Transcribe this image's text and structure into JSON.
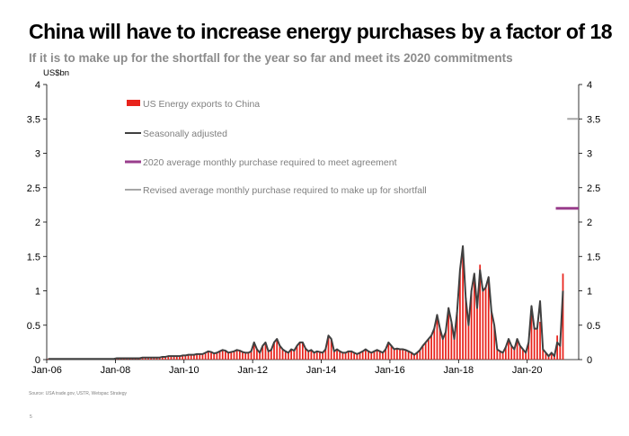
{
  "header": {
    "title": "China will have to increase energy purchases by a factor of 18",
    "subtitle": "If it is to make up for the shortfall for the year so far and meet its 2020 commitments"
  },
  "footer": {
    "source": "Source: USA trade.gov, USTR, Wetspac Strategy",
    "page_number": "5"
  },
  "chart_data": {
    "type": "bar",
    "title": "China will have to increase energy purchases by a factor of 18",
    "ylabel": "US$bn",
    "ylim": [
      0,
      4
    ],
    "yticks": [
      "0",
      "0.5",
      "1",
      "1.5",
      "2",
      "2.5",
      "3",
      "3.5",
      "4"
    ],
    "xticks": [
      "Jan-06",
      "Jan-08",
      "Jan-10",
      "Jan-12",
      "Jan-14",
      "Jan-16",
      "Jan-18",
      "Jan-20"
    ],
    "start_month": "Jan-06",
    "colors": {
      "bars": "#e8231c",
      "line": "#404040",
      "target": "#993d8c",
      "revised": "#a6a6a6"
    },
    "legend": [
      {
        "label": "US Energy exports to China",
        "kind": "bar",
        "color": "#e8231c"
      },
      {
        "label": "Seasonally adjusted",
        "kind": "line",
        "color": "#404040"
      },
      {
        "label": "2020 average monthly purchase required to meet agreement",
        "kind": "line",
        "color": "#993d8c"
      },
      {
        "label": "Revised average monthly purchase required to make up for shortfall",
        "kind": "line",
        "color": "#a6a6a6"
      }
    ],
    "bar_series": {
      "name": "US Energy exports to China",
      "values": [
        0.01,
        0.01,
        0.01,
        0.01,
        0.01,
        0.01,
        0.01,
        0.01,
        0.01,
        0.01,
        0.01,
        0.01,
        0.01,
        0.01,
        0.01,
        0.01,
        0.01,
        0.01,
        0.01,
        0.01,
        0.01,
        0.01,
        0.01,
        0.01,
        0.02,
        0.02,
        0.02,
        0.02,
        0.02,
        0.02,
        0.02,
        0.02,
        0.02,
        0.03,
        0.03,
        0.03,
        0.03,
        0.03,
        0.03,
        0.03,
        0.04,
        0.04,
        0.05,
        0.05,
        0.05,
        0.05,
        0.05,
        0.06,
        0.06,
        0.07,
        0.07,
        0.07,
        0.08,
        0.08,
        0.08,
        0.1,
        0.12,
        0.11,
        0.09,
        0.1,
        0.12,
        0.14,
        0.13,
        0.1,
        0.11,
        0.12,
        0.14,
        0.13,
        0.11,
        0.1,
        0.1,
        0.12,
        0.25,
        0.15,
        0.1,
        0.2,
        0.25,
        0.12,
        0.14,
        0.25,
        0.3,
        0.2,
        0.15,
        0.12,
        0.1,
        0.15,
        0.13,
        0.2,
        0.25,
        0.25,
        0.16,
        0.12,
        0.14,
        0.1,
        0.12,
        0.11,
        0.1,
        0.15,
        0.35,
        0.3,
        0.12,
        0.15,
        0.12,
        0.1,
        0.1,
        0.12,
        0.12,
        0.1,
        0.08,
        0.1,
        0.12,
        0.15,
        0.12,
        0.1,
        0.12,
        0.14,
        0.12,
        0.1,
        0.15,
        0.25,
        0.2,
        0.15,
        0.16,
        0.15,
        0.15,
        0.14,
        0.12,
        0.1,
        0.07,
        0.1,
        0.14,
        0.2,
        0.25,
        0.3,
        0.35,
        0.45,
        0.65,
        0.45,
        0.3,
        0.4,
        0.75,
        0.55,
        0.3,
        0.7,
        1.3,
        1.6,
        0.9,
        0.5,
        1.0,
        1.2,
        0.75,
        1.38,
        1.0,
        1.05,
        1.2,
        0.7,
        0.5,
        0.15,
        0.12,
        0.1,
        0.18,
        0.3,
        0.2,
        0.15,
        0.3,
        0.2,
        0.15,
        0.1,
        0.25,
        0.75,
        0.45,
        0.45,
        0.55,
        0.15,
        0.1,
        0.05,
        0.1,
        0.05,
        0.35,
        0.2,
        1.25
      ]
    },
    "line_series": {
      "name": "Seasonally adjusted",
      "values": [
        0.01,
        0.01,
        0.01,
        0.01,
        0.01,
        0.01,
        0.01,
        0.01,
        0.01,
        0.01,
        0.01,
        0.01,
        0.01,
        0.01,
        0.01,
        0.01,
        0.01,
        0.01,
        0.01,
        0.01,
        0.01,
        0.01,
        0.01,
        0.01,
        0.02,
        0.02,
        0.02,
        0.02,
        0.02,
        0.02,
        0.02,
        0.02,
        0.02,
        0.03,
        0.03,
        0.03,
        0.03,
        0.03,
        0.03,
        0.03,
        0.04,
        0.04,
        0.05,
        0.05,
        0.05,
        0.05,
        0.05,
        0.06,
        0.06,
        0.07,
        0.07,
        0.07,
        0.08,
        0.08,
        0.08,
        0.1,
        0.12,
        0.11,
        0.09,
        0.1,
        0.12,
        0.14,
        0.13,
        0.1,
        0.11,
        0.12,
        0.14,
        0.13,
        0.11,
        0.1,
        0.1,
        0.12,
        0.25,
        0.15,
        0.1,
        0.2,
        0.25,
        0.12,
        0.14,
        0.25,
        0.3,
        0.2,
        0.15,
        0.12,
        0.1,
        0.15,
        0.13,
        0.2,
        0.25,
        0.25,
        0.16,
        0.12,
        0.14,
        0.1,
        0.12,
        0.11,
        0.1,
        0.15,
        0.35,
        0.3,
        0.12,
        0.15,
        0.12,
        0.1,
        0.1,
        0.12,
        0.12,
        0.1,
        0.08,
        0.1,
        0.12,
        0.15,
        0.12,
        0.1,
        0.12,
        0.14,
        0.12,
        0.1,
        0.15,
        0.25,
        0.2,
        0.15,
        0.16,
        0.15,
        0.15,
        0.14,
        0.12,
        0.1,
        0.07,
        0.1,
        0.14,
        0.2,
        0.25,
        0.3,
        0.35,
        0.45,
        0.65,
        0.45,
        0.3,
        0.4,
        0.75,
        0.55,
        0.3,
        0.7,
        1.3,
        1.65,
        0.9,
        0.5,
        1.0,
        1.25,
        0.75,
        1.3,
        1.0,
        1.05,
        1.2,
        0.7,
        0.5,
        0.15,
        0.12,
        0.1,
        0.18,
        0.3,
        0.2,
        0.15,
        0.3,
        0.2,
        0.15,
        0.1,
        0.25,
        0.78,
        0.45,
        0.45,
        0.85,
        0.15,
        0.1,
        0.05,
        0.1,
        0.05,
        0.25,
        0.2,
        1.0
      ]
    },
    "target_2020": {
      "value": 2.2,
      "from_month_index": 178,
      "to_month_index": 185
    },
    "revised_target": {
      "value": 3.5,
      "from_month_index": 182,
      "to_month_index": 185
    }
  }
}
